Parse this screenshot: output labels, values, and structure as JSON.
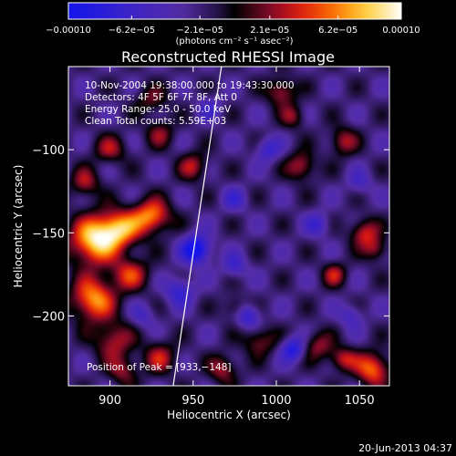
{
  "chart_data": {
    "type": "heatmap",
    "title": "Reconstructed RHESSI Image",
    "xlabel": "Heliocentric X (arcsec)",
    "ylabel": "Heliocentric Y (arcsec)",
    "xlim": [
      875,
      1068
    ],
    "ylim": [
      -242,
      -50
    ],
    "x_ticks": [
      {
        "value": 900,
        "label": "900"
      },
      {
        "value": 950,
        "label": "950"
      },
      {
        "value": 1000,
        "label": "1000"
      },
      {
        "value": 1050,
        "label": "1050"
      }
    ],
    "y_ticks": [
      {
        "value": -100,
        "label": "−100"
      },
      {
        "value": -150,
        "label": "−150"
      },
      {
        "value": -200,
        "label": "−200"
      }
    ],
    "colorbar": {
      "unit_label": "(photons cm⁻² s⁻¹ asec⁻²)",
      "ticks": [
        {
          "value": -0.0001,
          "label": "−0.00010"
        },
        {
          "value": -6.2e-05,
          "label": "−6.2e−05"
        },
        {
          "value": -2.1e-05,
          "label": "−2.1e−05"
        },
        {
          "value": 2.1e-05,
          "label": "2.1e−05"
        },
        {
          "value": 6.2e-05,
          "label": "6.2e−05"
        },
        {
          "value": 0.0001,
          "label": "0.00010"
        }
      ],
      "range": [
        -0.0001,
        0.0001
      ]
    },
    "annotations": [
      "10-Nov-2004 19:38:00.000 to 19:43:30.000",
      "Detectors: 4F 5F 6F 7F 8F, Att 0",
      "Energy Range: 25.0 - 50.0 keV",
      "Clean    Total counts: 5.59E+03"
    ],
    "peak_text": "Position of Peak = [933,−148]",
    "limb_line": [
      [
        938,
        -242
      ],
      [
        967,
        -50
      ]
    ],
    "blobs": [
      {
        "x": 890,
        "y": -155,
        "sx": 10,
        "sy": 10,
        "a": 1.0
      },
      {
        "x": 905,
        "y": -148,
        "sx": 9,
        "sy": 8,
        "a": 0.9
      },
      {
        "x": 925,
        "y": -140,
        "sx": 8,
        "sy": 7,
        "a": 0.85
      },
      {
        "x": 890,
        "y": -190,
        "sx": 9,
        "sy": 9,
        "a": 0.9
      },
      {
        "x": 912,
        "y": -175,
        "sx": 8,
        "sy": 7,
        "a": 0.6
      },
      {
        "x": 902,
        "y": -215,
        "sx": 8,
        "sy": 8,
        "a": 0.55
      },
      {
        "x": 930,
        "y": -225,
        "sx": 7,
        "sy": 7,
        "a": 0.5
      },
      {
        "x": 908,
        "y": -233,
        "sx": 6,
        "sy": 6,
        "a": 0.45
      },
      {
        "x": 885,
        "y": -120,
        "sx": 6,
        "sy": 6,
        "a": 0.5
      },
      {
        "x": 900,
        "y": -100,
        "sx": 7,
        "sy": 6,
        "a": 0.45
      },
      {
        "x": 930,
        "y": -90,
        "sx": 6,
        "sy": 6,
        "a": 0.4
      },
      {
        "x": 950,
        "y": -110,
        "sx": 6,
        "sy": 6,
        "a": 0.5
      },
      {
        "x": 925,
        "y": -70,
        "sx": 7,
        "sy": 6,
        "a": 0.35
      },
      {
        "x": 1003,
        "y": -65,
        "sx": 6,
        "sy": 6,
        "a": 0.55
      },
      {
        "x": 1015,
        "y": -110,
        "sx": 6,
        "sy": 6,
        "a": 0.55
      },
      {
        "x": 1040,
        "y": -95,
        "sx": 6,
        "sy": 6,
        "a": 0.5
      },
      {
        "x": 1053,
        "y": -150,
        "sx": 6,
        "sy": 6,
        "a": 0.6
      },
      {
        "x": 1035,
        "y": -175,
        "sx": 5,
        "sy": 5,
        "a": 0.5
      },
      {
        "x": 1060,
        "y": -160,
        "sx": 5,
        "sy": 5,
        "a": 0.45
      },
      {
        "x": 1058,
        "y": -232,
        "sx": 7,
        "sy": 7,
        "a": 0.8
      },
      {
        "x": 1040,
        "y": -226,
        "sx": 6,
        "sy": 5,
        "a": 0.55
      },
      {
        "x": 1025,
        "y": -218,
        "sx": 6,
        "sy": 6,
        "a": 0.45
      },
      {
        "x": 990,
        "y": -215,
        "sx": 7,
        "sy": 6,
        "a": 0.45
      },
      {
        "x": 968,
        "y": -232,
        "sx": 6,
        "sy": 6,
        "a": 0.5
      },
      {
        "x": 975,
        "y": -195,
        "sx": 5,
        "sy": 5,
        "a": 0.35
      },
      {
        "x": 1010,
        "y": -80,
        "sx": 5,
        "sy": 5,
        "a": 0.4
      },
      {
        "x": 952,
        "y": -160,
        "sx": 6,
        "sy": 6,
        "a": -0.9
      },
      {
        "x": 942,
        "y": -185,
        "sx": 6,
        "sy": 6,
        "a": -0.5
      },
      {
        "x": 975,
        "y": -170,
        "sx": 5,
        "sy": 5,
        "a": -0.4
      },
      {
        "x": 983,
        "y": -200,
        "sx": 5,
        "sy": 5,
        "a": -0.55
      },
      {
        "x": 1010,
        "y": -220,
        "sx": 5,
        "sy": 5,
        "a": -0.65
      },
      {
        "x": 995,
        "y": -100,
        "sx": 5,
        "sy": 5,
        "a": -0.45
      },
      {
        "x": 1025,
        "y": -145,
        "sx": 5,
        "sy": 5,
        "a": -0.4
      },
      {
        "x": 975,
        "y": -130,
        "sx": 5,
        "sy": 5,
        "a": -0.35
      },
      {
        "x": 920,
        "y": -200,
        "sx": 5,
        "sy": 5,
        "a": -0.3
      },
      {
        "x": 1045,
        "y": -200,
        "sx": 5,
        "sy": 5,
        "a": -0.35
      },
      {
        "x": 960,
        "y": -75,
        "sx": 5,
        "sy": 5,
        "a": -0.3
      },
      {
        "x": 1050,
        "y": -120,
        "sx": 5,
        "sy": 5,
        "a": -0.3
      }
    ],
    "ripple": 0.18,
    "grid": false,
    "colormap": "rainbow-blue-black-red-yellow-white"
  },
  "footer": {
    "date_stamp": "20-Jun-2013 04:37"
  }
}
